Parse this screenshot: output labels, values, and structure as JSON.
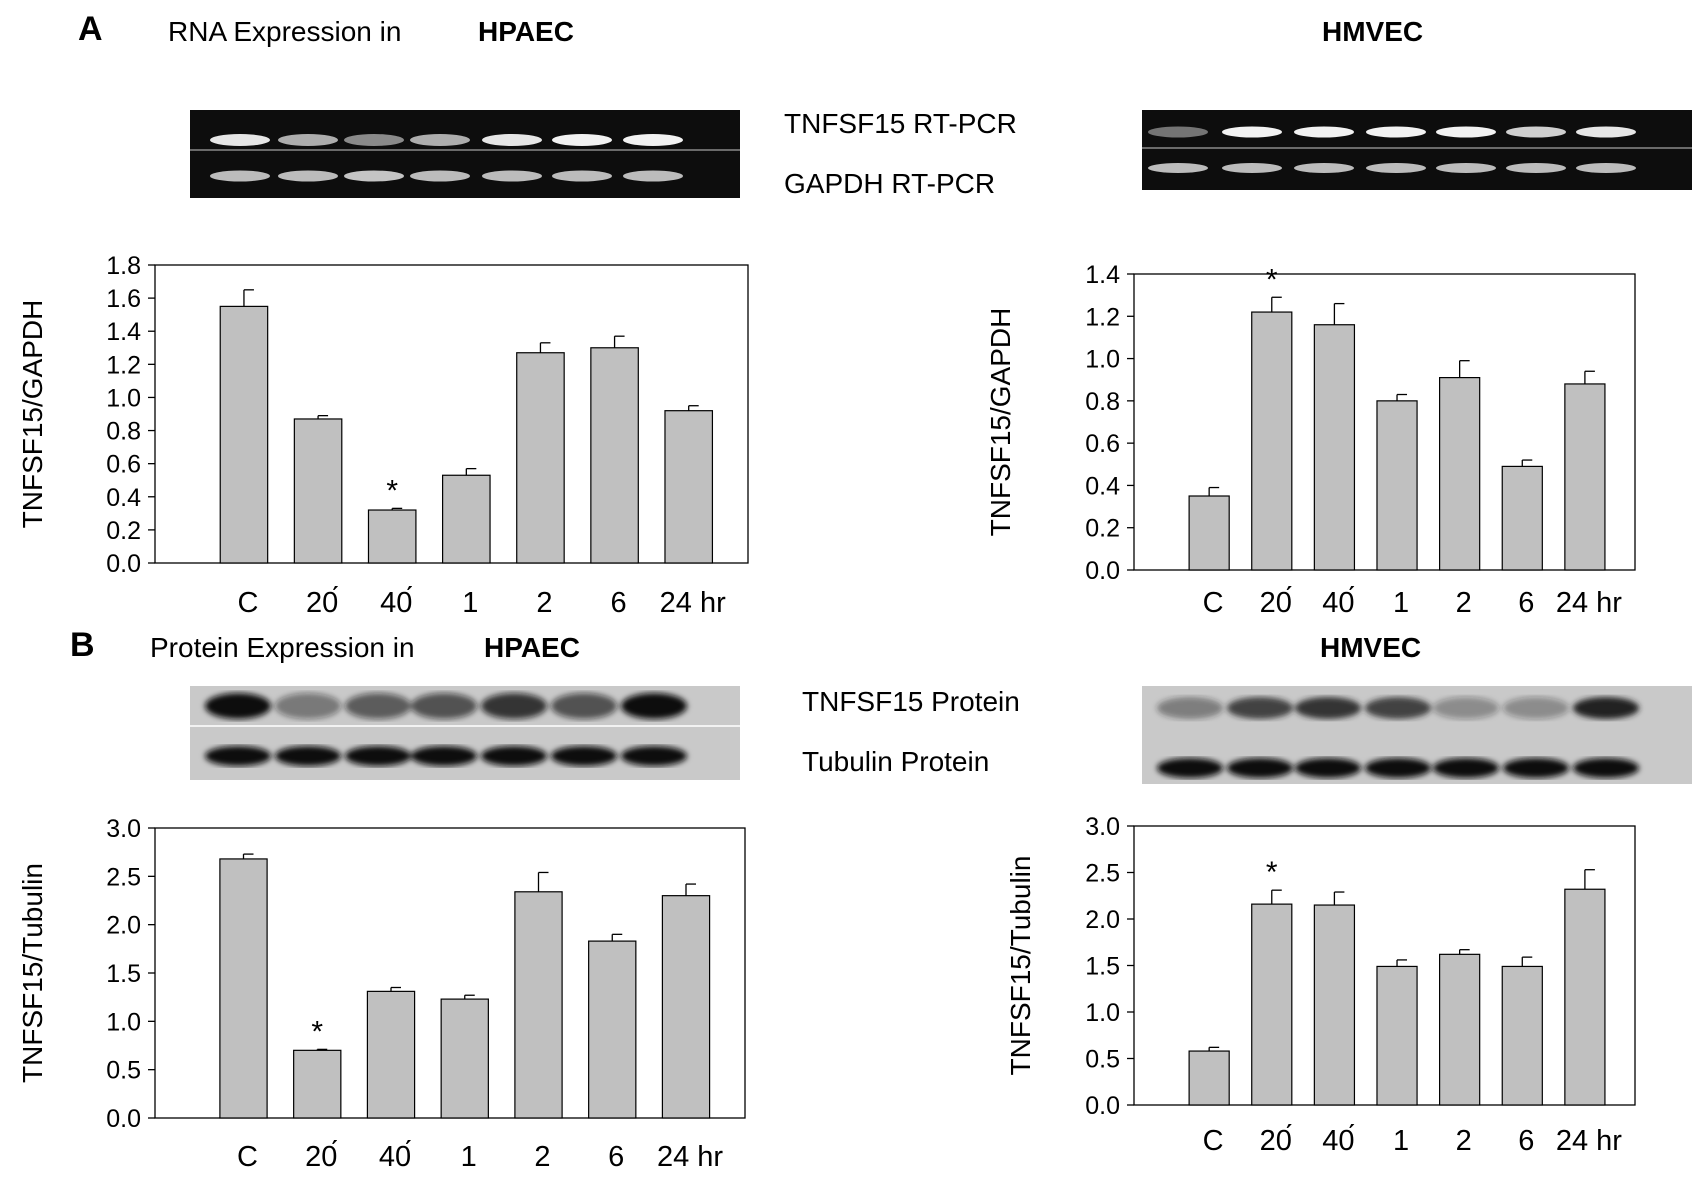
{
  "panel_a": {
    "letter": "A",
    "title_prefix": "RNA Expression in",
    "left_cell": "HPAEC",
    "right_cell": "HMVEC",
    "blot_label_top": "TNFSF15 RT-PCR",
    "blot_label_bottom": "GAPDH RT-PCR"
  },
  "panel_b": {
    "letter": "B",
    "title_prefix": "Protein  Expression in",
    "left_cell": "HPAEC",
    "right_cell": "HMVEC",
    "blot_label_top": "TNFSF15 Protein",
    "blot_label_bottom": "Tubulin Protein"
  },
  "colors": {
    "bar_fill": "#c0c0c0",
    "bar_stroke": "#000000",
    "gel_bg": "#0d0d0d",
    "western_bg": "#c9c9c9"
  },
  "chart_data": [
    {
      "id": "a_left",
      "type": "bar",
      "title": "",
      "xlabel": "",
      "ylabel": "TNFSF15/GAPDH",
      "categories": [
        "C",
        "20́",
        "40́",
        "1",
        "2",
        "6",
        "24 hr"
      ],
      "values": [
        1.55,
        0.87,
        0.32,
        0.53,
        1.27,
        1.3,
        0.92
      ],
      "errors": [
        0.1,
        0.02,
        0.01,
        0.04,
        0.06,
        0.07,
        0.03
      ],
      "significance": [
        "",
        "",
        "*",
        "",
        "",
        "",
        ""
      ],
      "ylim": [
        0.0,
        1.8
      ],
      "yticks": [
        0.0,
        0.2,
        0.4,
        0.6,
        0.8,
        1.0,
        1.2,
        1.4,
        1.6,
        1.8
      ],
      "ytick_labels": [
        "0.0",
        "0.2",
        "0.4",
        "0.6",
        "0.8",
        "1.0",
        "1.2",
        "1.4",
        "1.6",
        "1.8"
      ]
    },
    {
      "id": "a_right",
      "type": "bar",
      "title": "",
      "xlabel": "",
      "ylabel": "TNFSF15/GAPDH",
      "categories": [
        "C",
        "20́",
        "40́",
        "1",
        "2",
        "6",
        "24 hr"
      ],
      "values": [
        0.35,
        1.22,
        1.16,
        0.8,
        0.91,
        0.49,
        0.88
      ],
      "errors": [
        0.04,
        0.07,
        0.1,
        0.03,
        0.08,
        0.03,
        0.06
      ],
      "significance": [
        "",
        "*",
        "",
        "",
        "",
        "",
        ""
      ],
      "ylim": [
        0.0,
        1.4
      ],
      "yticks": [
        0.0,
        0.2,
        0.4,
        0.6,
        0.8,
        1.0,
        1.2,
        1.4
      ],
      "ytick_labels": [
        "0.0",
        "0.2",
        "0.4",
        "0.6",
        "0.8",
        "1.0",
        "1.2",
        "1.4"
      ]
    },
    {
      "id": "b_left",
      "type": "bar",
      "title": "",
      "xlabel": "",
      "ylabel": "TNFSF15/Tubulin",
      "categories": [
        "C",
        "20́",
        "40́",
        "1",
        "2",
        "6",
        "24 hr"
      ],
      "values": [
        2.68,
        0.7,
        1.31,
        1.23,
        2.34,
        1.83,
        2.3
      ],
      "errors": [
        0.05,
        0.01,
        0.04,
        0.04,
        0.2,
        0.07,
        0.12
      ],
      "significance": [
        "",
        "*",
        "",
        "",
        "",
        "",
        ""
      ],
      "ylim": [
        0.0,
        3.0
      ],
      "yticks": [
        0.0,
        0.5,
        1.0,
        1.5,
        2.0,
        2.5,
        3.0
      ],
      "ytick_labels": [
        "0.0",
        "0.5",
        "1.0",
        "1.5",
        "2.0",
        "2.5",
        "3.0"
      ]
    },
    {
      "id": "b_right",
      "type": "bar",
      "title": "",
      "xlabel": "",
      "ylabel": "TNFSF15/Tubulin",
      "categories": [
        "C",
        "20́",
        "40́",
        "1",
        "2",
        "6",
        "24 hr"
      ],
      "values": [
        0.58,
        2.16,
        2.15,
        1.49,
        1.62,
        1.49,
        2.32
      ],
      "errors": [
        0.04,
        0.15,
        0.14,
        0.07,
        0.05,
        0.1,
        0.21
      ],
      "significance": [
        "",
        "*",
        "",
        "",
        "",
        "",
        ""
      ],
      "ylim": [
        0.0,
        3.0
      ],
      "yticks": [
        0.0,
        0.5,
        1.0,
        1.5,
        2.0,
        2.5,
        3.0
      ],
      "ytick_labels": [
        "0.0",
        "0.5",
        "1.0",
        "1.5",
        "2.0",
        "2.5",
        "3.0"
      ]
    }
  ]
}
